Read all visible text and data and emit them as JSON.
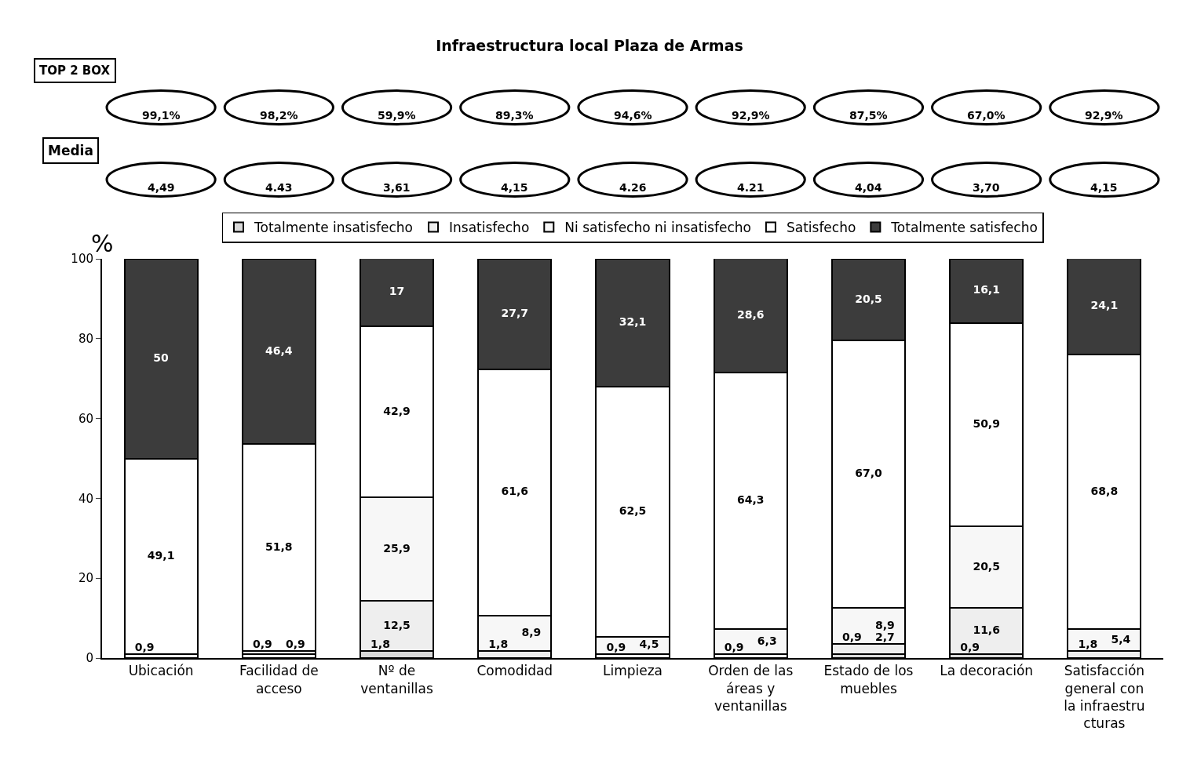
{
  "chart_data": {
    "type": "bar",
    "stacked": true,
    "title": "Infraestructura local Plaza de Armas",
    "ylabel": "%",
    "categories": [
      "Ubicación",
      "Facilidad de acceso",
      "Nº de ventanillas",
      "Comodidad",
      "Limpieza",
      "Orden de las áreas y ventanillas",
      "Estado de los muebles",
      "La decoración",
      "Satisfacción general con la infraestructuras"
    ],
    "series": [
      {
        "name": "Totalmente insatisfecho",
        "color": "#d9d9d9",
        "values": [
          null,
          null,
          1.8,
          null,
          null,
          null,
          0.9,
          0.9,
          null
        ],
        "value_labels": [
          null,
          null,
          "1,8",
          null,
          null,
          null,
          "0,9",
          "0,9",
          null
        ]
      },
      {
        "name": "Insatisfecho",
        "color": "#eeeeee",
        "values": [
          0.9,
          0.9,
          12.5,
          1.8,
          0.9,
          0.9,
          2.7,
          11.6,
          1.8
        ],
        "value_labels": [
          "0,9",
          "0,9",
          "12,5",
          "1,8",
          "0,9",
          "0,9",
          "2,7",
          "11,6",
          "1,8"
        ]
      },
      {
        "name": "Ni satisfecho ni insatisfecho",
        "color": "#f7f7f7",
        "values": [
          null,
          0.9,
          25.9,
          8.9,
          4.5,
          6.3,
          8.9,
          20.5,
          5.4
        ],
        "value_labels": [
          null,
          "0,9",
          "25,9",
          "8,9",
          "4,5",
          "6,3",
          "8,9",
          "20,5",
          "5,4"
        ]
      },
      {
        "name": "Satisfecho",
        "color": "#ffffff",
        "values": [
          49.1,
          51.8,
          42.9,
          61.6,
          62.5,
          64.3,
          67.0,
          50.9,
          68.8
        ],
        "value_labels": [
          "49,1",
          "51,8",
          "42,9",
          "61,6",
          "62,5",
          "64,3",
          "67,0",
          "50,9",
          "68,8"
        ]
      },
      {
        "name": "Totalmente satisfecho",
        "color": "#3c3c3c",
        "values": [
          50,
          46.4,
          17,
          27.7,
          32.1,
          28.6,
          20.5,
          16.1,
          24.1
        ],
        "value_labels": [
          "50",
          "46,4",
          "17",
          "27,7",
          "32,1",
          "28,6",
          "20,5",
          "16,1",
          "24,1"
        ]
      }
    ],
    "ylim": [
      0,
      100
    ],
    "yticks": [
      0,
      20,
      40,
      60,
      80,
      100
    ],
    "grid": false,
    "legend": "top",
    "annotations": [
      "TOP 2 BOX",
      "99,1%",
      "98,2%",
      "59,9%",
      "89,3%",
      "94,6%",
      "92,9%",
      "87,5%",
      "67,0%",
      "92,9%",
      "Media",
      "4,49",
      "4.43",
      "3,61",
      "4,15",
      "4.26",
      "4.21",
      "4,04",
      "3,70",
      "4,15"
    ]
  }
}
